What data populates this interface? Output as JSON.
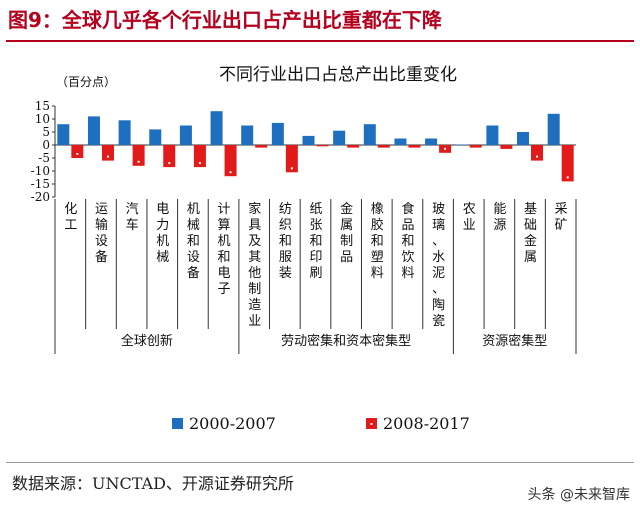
{
  "figure": {
    "title": "图9：全球几乎各个行业出口占产出比重都在下降",
    "source": "数据来源：UNCTAD、开源证券研究所",
    "watermark": "头条 @未来智库"
  },
  "chart_data": {
    "type": "bar",
    "title": "不同行业出口占总产出比重变化",
    "ylabel": "（百分点）",
    "ylim": [
      -20,
      15
    ],
    "yticks": [
      15,
      10,
      5,
      0,
      -5,
      -10,
      -15,
      -20
    ],
    "categories": [
      "化工",
      "运输设备",
      "汽车",
      "电力机械",
      "机械和设备",
      "计算机和电子",
      "家具及其他制造业",
      "纺织和服装",
      "纸张和印刷",
      "金属制品",
      "橡胶和塑料",
      "食品和饮料",
      "玻璃、水泥、陶瓷",
      "农业",
      "能源",
      "基础金属",
      "采矿"
    ],
    "groups": [
      {
        "label": "全球创新",
        "start": 0,
        "end": 5
      },
      {
        "label": "劳动密集和资本密集型",
        "start": 6,
        "end": 12
      },
      {
        "label": "资源密集型",
        "start": 13,
        "end": 16
      }
    ],
    "series": [
      {
        "name": "2000-2007",
        "color": "#1f6fc0",
        "values": [
          8,
          11,
          9.5,
          6,
          7.5,
          13,
          7.5,
          8.5,
          3.5,
          5.5,
          8,
          2.5,
          2.5,
          0.2,
          7.5,
          5,
          12
        ]
      },
      {
        "name": "2008-2017",
        "color": "#e21a1a",
        "values": [
          -5,
          -6,
          -8,
          -8.5,
          -8.5,
          -12,
          -1,
          -10.5,
          -0.5,
          -1,
          -1,
          -1,
          -3,
          -1,
          -1.5,
          -6,
          -14
        ]
      }
    ],
    "legend_position": "bottom"
  }
}
